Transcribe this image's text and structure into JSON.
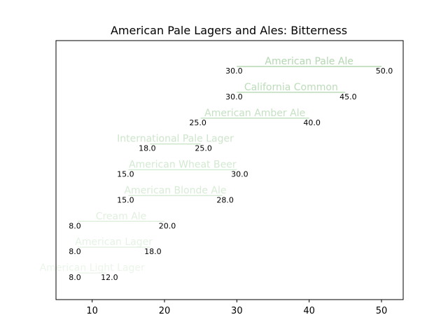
{
  "chart_data": {
    "type": "range-bar",
    "title": "American Pale Lagers and Ales: Bitterness",
    "xlabel": "",
    "ylabel": "",
    "xlim": [
      5,
      53
    ],
    "xticks": [
      10,
      20,
      30,
      40,
      50
    ],
    "grid": false,
    "series": [
      {
        "label": "American Light Lager",
        "min": 8.0,
        "max": 12.0,
        "min_label": "8.0",
        "max_label": "12.0",
        "color": "#ebf5ea"
      },
      {
        "label": "American Lager",
        "min": 8.0,
        "max": 18.0,
        "min_label": "8.0",
        "max_label": "18.0",
        "color": "#e6f2e5"
      },
      {
        "label": "Cream Ale",
        "min": 8.0,
        "max": 20.0,
        "min_label": "8.0",
        "max_label": "20.0",
        "color": "#e1efdf"
      },
      {
        "label": "American Blonde Ale",
        "min": 15.0,
        "max": 28.0,
        "min_label": "15.0",
        "max_label": "28.0",
        "color": "#d8ebd6"
      },
      {
        "label": "American Wheat Beer",
        "min": 15.0,
        "max": 30.0,
        "min_label": "15.0",
        "max_label": "30.0",
        "color": "#d3e9d1"
      },
      {
        "label": "International Pale Lager",
        "min": 18.0,
        "max": 25.0,
        "min_label": "18.0",
        "max_label": "25.0",
        "color": "#cde5cb"
      },
      {
        "label": "American Amber Ale",
        "min": 25.0,
        "max": 40.0,
        "min_label": "25.0",
        "max_label": "40.0",
        "color": "#c5e1c3"
      },
      {
        "label": "California Common",
        "min": 30.0,
        "max": 45.0,
        "min_label": "30.0",
        "max_label": "45.0",
        "color": "#bcdcb9"
      },
      {
        "label": "American Pale Ale",
        "min": 30.0,
        "max": 50.0,
        "min_label": "30.0",
        "max_label": "50.0",
        "color": "#b3d7b0"
      }
    ]
  }
}
